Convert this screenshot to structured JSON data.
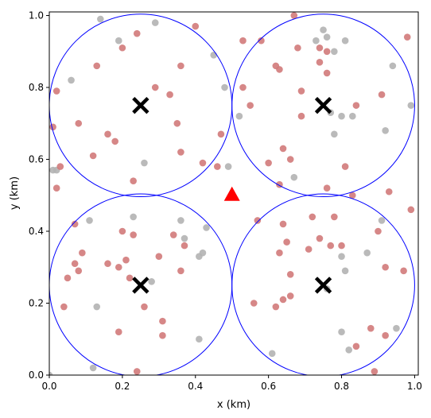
{
  "chart_data": {
    "type": "scatter",
    "title": "",
    "xlabel": "x (km)",
    "ylabel": "y (km)",
    "xlim": [
      0.0,
      1.01
    ],
    "ylim": [
      0.0,
      1.01
    ],
    "xticks": [
      "0.0",
      "0.2",
      "0.4",
      "0.6",
      "0.8",
      "1.0"
    ],
    "yticks": [
      "0.0",
      "0.2",
      "0.4",
      "0.6",
      "0.8",
      "1.0"
    ],
    "grid": false,
    "colors": {
      "served": "#d17a7a",
      "unserved": "#b3b3b3",
      "circle": "#0000ff",
      "centers": "#000000",
      "base_station": "#ff0000"
    },
    "coverage_circles": [
      {
        "cx": 0.25,
        "cy": 0.75,
        "r": 0.25
      },
      {
        "cx": 0.75,
        "cy": 0.75,
        "r": 0.25
      },
      {
        "cx": 0.25,
        "cy": 0.25,
        "r": 0.25
      },
      {
        "cx": 0.75,
        "cy": 0.25,
        "r": 0.25
      }
    ],
    "centers": [
      [
        0.25,
        0.75
      ],
      [
        0.75,
        0.75
      ],
      [
        0.25,
        0.25
      ],
      [
        0.75,
        0.25
      ]
    ],
    "base_station": [
      0.5,
      0.5
    ],
    "points_red": [
      [
        0.24,
        0.95
      ],
      [
        0.2,
        0.91
      ],
      [
        0.13,
        0.86
      ],
      [
        0.36,
        0.86
      ],
      [
        0.29,
        0.8
      ],
      [
        0.33,
        0.78
      ],
      [
        0.02,
        0.79
      ],
      [
        0.08,
        0.7
      ],
      [
        0.01,
        0.69
      ],
      [
        0.16,
        0.67
      ],
      [
        0.18,
        0.65
      ],
      [
        0.35,
        0.7
      ],
      [
        0.42,
        0.59
      ],
      [
        0.36,
        0.62
      ],
      [
        0.12,
        0.61
      ],
      [
        0.47,
        0.67
      ],
      [
        0.4,
        0.97
      ],
      [
        0.02,
        0.52
      ],
      [
        0.03,
        0.58
      ],
      [
        0.23,
        0.54
      ],
      [
        0.46,
        0.58
      ],
      [
        0.53,
        0.93
      ],
      [
        0.58,
        0.93
      ],
      [
        0.67,
        1.0
      ],
      [
        0.68,
        0.91
      ],
      [
        0.74,
        0.91
      ],
      [
        0.76,
        0.9
      ],
      [
        0.63,
        0.85
      ],
      [
        0.62,
        0.86
      ],
      [
        0.74,
        0.87
      ],
      [
        0.76,
        0.84
      ],
      [
        0.53,
        0.8
      ],
      [
        0.55,
        0.75
      ],
      [
        0.69,
        0.72
      ],
      [
        0.69,
        0.79
      ],
      [
        0.84,
        0.75
      ],
      [
        0.91,
        0.78
      ],
      [
        0.98,
        0.94
      ],
      [
        0.64,
        0.63
      ],
      [
        0.6,
        0.59
      ],
      [
        0.66,
        0.6
      ],
      [
        0.81,
        0.58
      ],
      [
        0.76,
        0.52
      ],
      [
        0.83,
        0.5
      ],
      [
        0.93,
        0.51
      ],
      [
        0.99,
        0.46
      ],
      [
        0.63,
        0.53
      ],
      [
        0.07,
        0.42
      ],
      [
        0.09,
        0.34
      ],
      [
        0.07,
        0.31
      ],
      [
        0.05,
        0.27
      ],
      [
        0.08,
        0.29
      ],
      [
        0.16,
        0.31
      ],
      [
        0.19,
        0.3
      ],
      [
        0.21,
        0.32
      ],
      [
        0.2,
        0.4
      ],
      [
        0.23,
        0.39
      ],
      [
        0.3,
        0.33
      ],
      [
        0.34,
        0.39
      ],
      [
        0.37,
        0.36
      ],
      [
        0.22,
        0.27
      ],
      [
        0.26,
        0.19
      ],
      [
        0.04,
        0.19
      ],
      [
        0.36,
        0.29
      ],
      [
        0.31,
        0.15
      ],
      [
        0.19,
        0.12
      ],
      [
        0.31,
        0.11
      ],
      [
        0.24,
        0.01
      ],
      [
        0.57,
        0.43
      ],
      [
        0.64,
        0.42
      ],
      [
        0.72,
        0.44
      ],
      [
        0.78,
        0.44
      ],
      [
        0.63,
        0.34
      ],
      [
        0.65,
        0.37
      ],
      [
        0.71,
        0.35
      ],
      [
        0.74,
        0.38
      ],
      [
        0.77,
        0.36
      ],
      [
        0.8,
        0.36
      ],
      [
        0.66,
        0.28
      ],
      [
        0.56,
        0.2
      ],
      [
        0.62,
        0.19
      ],
      [
        0.64,
        0.21
      ],
      [
        0.66,
        0.22
      ],
      [
        0.9,
        0.4
      ],
      [
        0.92,
        0.3
      ],
      [
        0.97,
        0.29
      ],
      [
        0.88,
        0.13
      ],
      [
        0.92,
        0.11
      ],
      [
        0.84,
        0.08
      ],
      [
        0.89,
        0.01
      ]
    ],
    "points_gray": [
      [
        0.14,
        0.99
      ],
      [
        0.19,
        0.93
      ],
      [
        0.29,
        0.98
      ],
      [
        0.45,
        0.89
      ],
      [
        0.48,
        0.8
      ],
      [
        0.06,
        0.82
      ],
      [
        0.26,
        0.59
      ],
      [
        0.01,
        0.57
      ],
      [
        0.02,
        0.57
      ],
      [
        0.49,
        0.58
      ],
      [
        0.73,
        0.93
      ],
      [
        0.76,
        0.94
      ],
      [
        0.78,
        0.9
      ],
      [
        0.81,
        0.93
      ],
      [
        0.75,
        0.96
      ],
      [
        0.94,
        0.86
      ],
      [
        0.99,
        0.75
      ],
      [
        0.52,
        0.72
      ],
      [
        0.77,
        0.73
      ],
      [
        0.78,
        0.67
      ],
      [
        0.8,
        0.72
      ],
      [
        0.83,
        0.72
      ],
      [
        0.92,
        0.68
      ],
      [
        0.67,
        0.55
      ],
      [
        0.11,
        0.43
      ],
      [
        0.23,
        0.44
      ],
      [
        0.36,
        0.43
      ],
      [
        0.43,
        0.41
      ],
      [
        0.37,
        0.38
      ],
      [
        0.41,
        0.33
      ],
      [
        0.42,
        0.34
      ],
      [
        0.28,
        0.26
      ],
      [
        0.13,
        0.19
      ],
      [
        0.41,
        0.1
      ],
      [
        0.12,
        0.02
      ],
      [
        0.0,
        0.0
      ],
      [
        0.8,
        0.33
      ],
      [
        0.81,
        0.29
      ],
      [
        0.87,
        0.34
      ],
      [
        0.91,
        0.43
      ],
      [
        0.76,
        0.24
      ],
      [
        0.61,
        0.06
      ],
      [
        0.8,
        0.12
      ],
      [
        0.82,
        0.07
      ],
      [
        0.95,
        0.13
      ]
    ]
  }
}
